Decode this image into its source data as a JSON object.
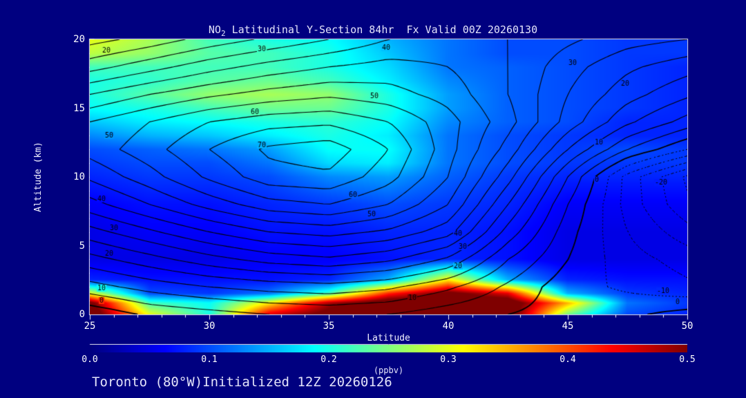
{
  "title": {
    "prefix": "NO",
    "subscript": "2",
    "rest": " Latitudinal Y-Section 84hr  Fx Valid 00Z 20260130"
  },
  "footer": {
    "run_info": "Toronto (80°W)Initialized 12Z 20260126"
  },
  "colors": {
    "background": "#000080",
    "title_text": "#e4e4fa",
    "tick_text": "#ffffff",
    "frame": "#ffffff",
    "contour_line": "#000000"
  },
  "chart_data": {
    "type": "heatmap",
    "title": "NO2 Latitudinal Y-Section 84hr  Fx Valid 00Z 20260130",
    "xlabel": "Latitude",
    "ylabel": "Altitude (km)",
    "xlim": [
      25,
      50
    ],
    "ylim": [
      0,
      20
    ],
    "x_ticks": [
      "25",
      "30",
      "35",
      "40",
      "45",
      "50"
    ],
    "x_tick_values": [
      25,
      30,
      35,
      40,
      45,
      50
    ],
    "x_minor_step": 1,
    "y_ticks": [
      "0",
      "5",
      "10",
      "15",
      "20"
    ],
    "y_tick_values": [
      0,
      5,
      10,
      15,
      20
    ],
    "y_minor_step": 1,
    "grid": false,
    "legend_position": "none",
    "colorbar": {
      "label": "(ppbv)",
      "min": 0.0,
      "max": 0.5,
      "ticks": [
        "0.0",
        "0.1",
        "0.2",
        "0.3",
        "0.4",
        "0.5"
      ],
      "tick_values": [
        0.0,
        0.1,
        0.2,
        0.3,
        0.4,
        0.5
      ],
      "colormap": "jet",
      "position": "bottom"
    },
    "fill_field": {
      "name": "NO2 concentration (ppbv)",
      "lats": [
        25,
        27.5,
        30,
        32.5,
        35,
        37.5,
        40,
        42.5,
        45,
        47.5,
        50
      ],
      "alts": [
        0,
        0.8,
        1.5,
        2.5,
        4,
        6,
        8,
        10,
        11,
        12,
        13,
        14,
        15,
        16,
        17,
        18,
        19,
        20
      ],
      "values": [
        [
          0.55,
          0.3,
          0.2,
          0.45,
          0.52,
          0.55,
          0.55,
          0.55,
          0.25,
          0.1,
          0.08
        ],
        [
          0.52,
          0.22,
          0.19,
          0.32,
          0.48,
          0.55,
          0.55,
          0.55,
          0.35,
          0.12,
          0.09
        ],
        [
          0.3,
          0.1,
          0.09,
          0.12,
          0.22,
          0.42,
          0.52,
          0.45,
          0.15,
          0.09,
          0.08
        ],
        [
          0.08,
          0.07,
          0.07,
          0.07,
          0.08,
          0.15,
          0.32,
          0.15,
          0.08,
          0.07,
          0.07
        ],
        [
          0.05,
          0.05,
          0.05,
          0.06,
          0.06,
          0.07,
          0.08,
          0.07,
          0.05,
          0.05,
          0.05
        ],
        [
          0.05,
          0.06,
          0.06,
          0.07,
          0.07,
          0.08,
          0.08,
          0.07,
          0.05,
          0.05,
          0.05
        ],
        [
          0.06,
          0.07,
          0.07,
          0.08,
          0.09,
          0.1,
          0.09,
          0.08,
          0.06,
          0.06,
          0.06
        ],
        [
          0.08,
          0.09,
          0.09,
          0.1,
          0.13,
          0.14,
          0.11,
          0.09,
          0.08,
          0.08,
          0.08
        ],
        [
          0.09,
          0.1,
          0.1,
          0.12,
          0.17,
          0.18,
          0.12,
          0.1,
          0.09,
          0.09,
          0.09
        ],
        [
          0.1,
          0.11,
          0.12,
          0.14,
          0.19,
          0.19,
          0.12,
          0.1,
          0.09,
          0.1,
          0.09
        ],
        [
          0.13,
          0.15,
          0.16,
          0.18,
          0.2,
          0.18,
          0.12,
          0.1,
          0.09,
          0.08,
          0.08
        ],
        [
          0.16,
          0.18,
          0.19,
          0.2,
          0.21,
          0.19,
          0.13,
          0.11,
          0.1,
          0.08,
          0.08
        ],
        [
          0.19,
          0.2,
          0.22,
          0.24,
          0.24,
          0.2,
          0.14,
          0.11,
          0.1,
          0.09,
          0.08
        ],
        [
          0.2,
          0.23,
          0.26,
          0.27,
          0.26,
          0.2,
          0.14,
          0.11,
          0.1,
          0.09,
          0.08
        ],
        [
          0.2,
          0.21,
          0.23,
          0.24,
          0.22,
          0.18,
          0.13,
          0.11,
          0.1,
          0.09,
          0.08
        ],
        [
          0.22,
          0.22,
          0.22,
          0.22,
          0.2,
          0.17,
          0.12,
          0.11,
          0.1,
          0.09,
          0.08
        ],
        [
          0.28,
          0.26,
          0.23,
          0.22,
          0.2,
          0.16,
          0.12,
          0.1,
          0.1,
          0.09,
          0.09
        ],
        [
          0.3,
          0.27,
          0.22,
          0.2,
          0.19,
          0.15,
          0.12,
          0.1,
          0.1,
          0.09,
          0.09
        ]
      ]
    },
    "line_field": {
      "name": "overlaid contour field",
      "levels_step": 5,
      "min_level": -25,
      "max_level": 70,
      "negative_style": "dashed",
      "zero_line_width": 1.8,
      "lats": [
        25,
        27.5,
        30,
        32.5,
        35,
        37.5,
        40,
        42.5,
        45,
        47.5,
        50
      ],
      "alts": [
        0,
        2,
        4,
        6,
        8,
        10,
        12,
        14,
        16,
        18,
        20
      ],
      "values": [
        [
          -4,
          1,
          3,
          5,
          6,
          5,
          2,
          0,
          -2,
          -1,
          2
        ],
        [
          8,
          12,
          15,
          17,
          18,
          16,
          11,
          4,
          -3,
          -6,
          -9
        ],
        [
          18,
          23,
          28,
          32,
          34,
          31,
          24,
          10,
          0,
          -8,
          -12
        ],
        [
          28,
          34,
          40,
          45,
          47,
          44,
          37,
          18,
          2,
          -10,
          -18
        ],
        [
          38,
          45,
          52,
          58,
          60,
          55,
          45,
          25,
          5,
          -12,
          -24
        ],
        [
          46,
          53,
          61,
          68,
          69,
          62,
          50,
          32,
          10,
          -12,
          -26
        ],
        [
          52,
          58,
          65,
          71,
          73,
          65,
          52,
          38,
          20,
          5,
          -5
        ],
        [
          50,
          55,
          60,
          63,
          64,
          60,
          52,
          42,
          28,
          16,
          8
        ],
        [
          40,
          45,
          49,
          52,
          54,
          52,
          48,
          40,
          30,
          22,
          16
        ],
        [
          28,
          33,
          38,
          42,
          45,
          47,
          45,
          40,
          32,
          26,
          22
        ],
        [
          18,
          22,
          27,
          31,
          35,
          40,
          42,
          40,
          36,
          32,
          30
        ]
      ]
    },
    "contour_labels": [
      {
        "text": "20",
        "lat": 25.7,
        "alt": 19.2
      },
      {
        "text": "30",
        "lat": 32.2,
        "alt": 19.3
      },
      {
        "text": "40",
        "lat": 37.4,
        "alt": 19.4
      },
      {
        "text": "30",
        "lat": 45.2,
        "alt": 18.3
      },
      {
        "text": "20",
        "lat": 47.4,
        "alt": 16.8
      },
      {
        "text": "50",
        "lat": 36.9,
        "alt": 15.9
      },
      {
        "text": "60",
        "lat": 31.9,
        "alt": 14.7
      },
      {
        "text": "50",
        "lat": 25.8,
        "alt": 13.0
      },
      {
        "text": "70",
        "lat": 32.2,
        "alt": 12.3
      },
      {
        "text": "10",
        "lat": 46.3,
        "alt": 12.5
      },
      {
        "text": "0",
        "lat": 46.2,
        "alt": 9.8
      },
      {
        "text": "-20",
        "lat": 48.9,
        "alt": 9.6
      },
      {
        "text": "60",
        "lat": 36.0,
        "alt": 8.7
      },
      {
        "text": "40",
        "lat": 25.5,
        "alt": 8.4
      },
      {
        "text": "50",
        "lat": 36.8,
        "alt": 7.3
      },
      {
        "text": "30",
        "lat": 26.0,
        "alt": 6.3
      },
      {
        "text": "40",
        "lat": 40.4,
        "alt": 5.9
      },
      {
        "text": "30",
        "lat": 40.6,
        "alt": 4.9
      },
      {
        "text": "20",
        "lat": 25.8,
        "alt": 4.4
      },
      {
        "text": "20",
        "lat": 40.4,
        "alt": 3.5
      },
      {
        "text": "10",
        "lat": 25.5,
        "alt": 1.9
      },
      {
        "text": "10",
        "lat": 38.5,
        "alt": 1.2
      },
      {
        "text": "0",
        "lat": 25.5,
        "alt": 1.0
      },
      {
        "text": "-10",
        "lat": 49.0,
        "alt": 1.7
      },
      {
        "text": "0",
        "lat": 49.6,
        "alt": 0.9
      }
    ]
  }
}
